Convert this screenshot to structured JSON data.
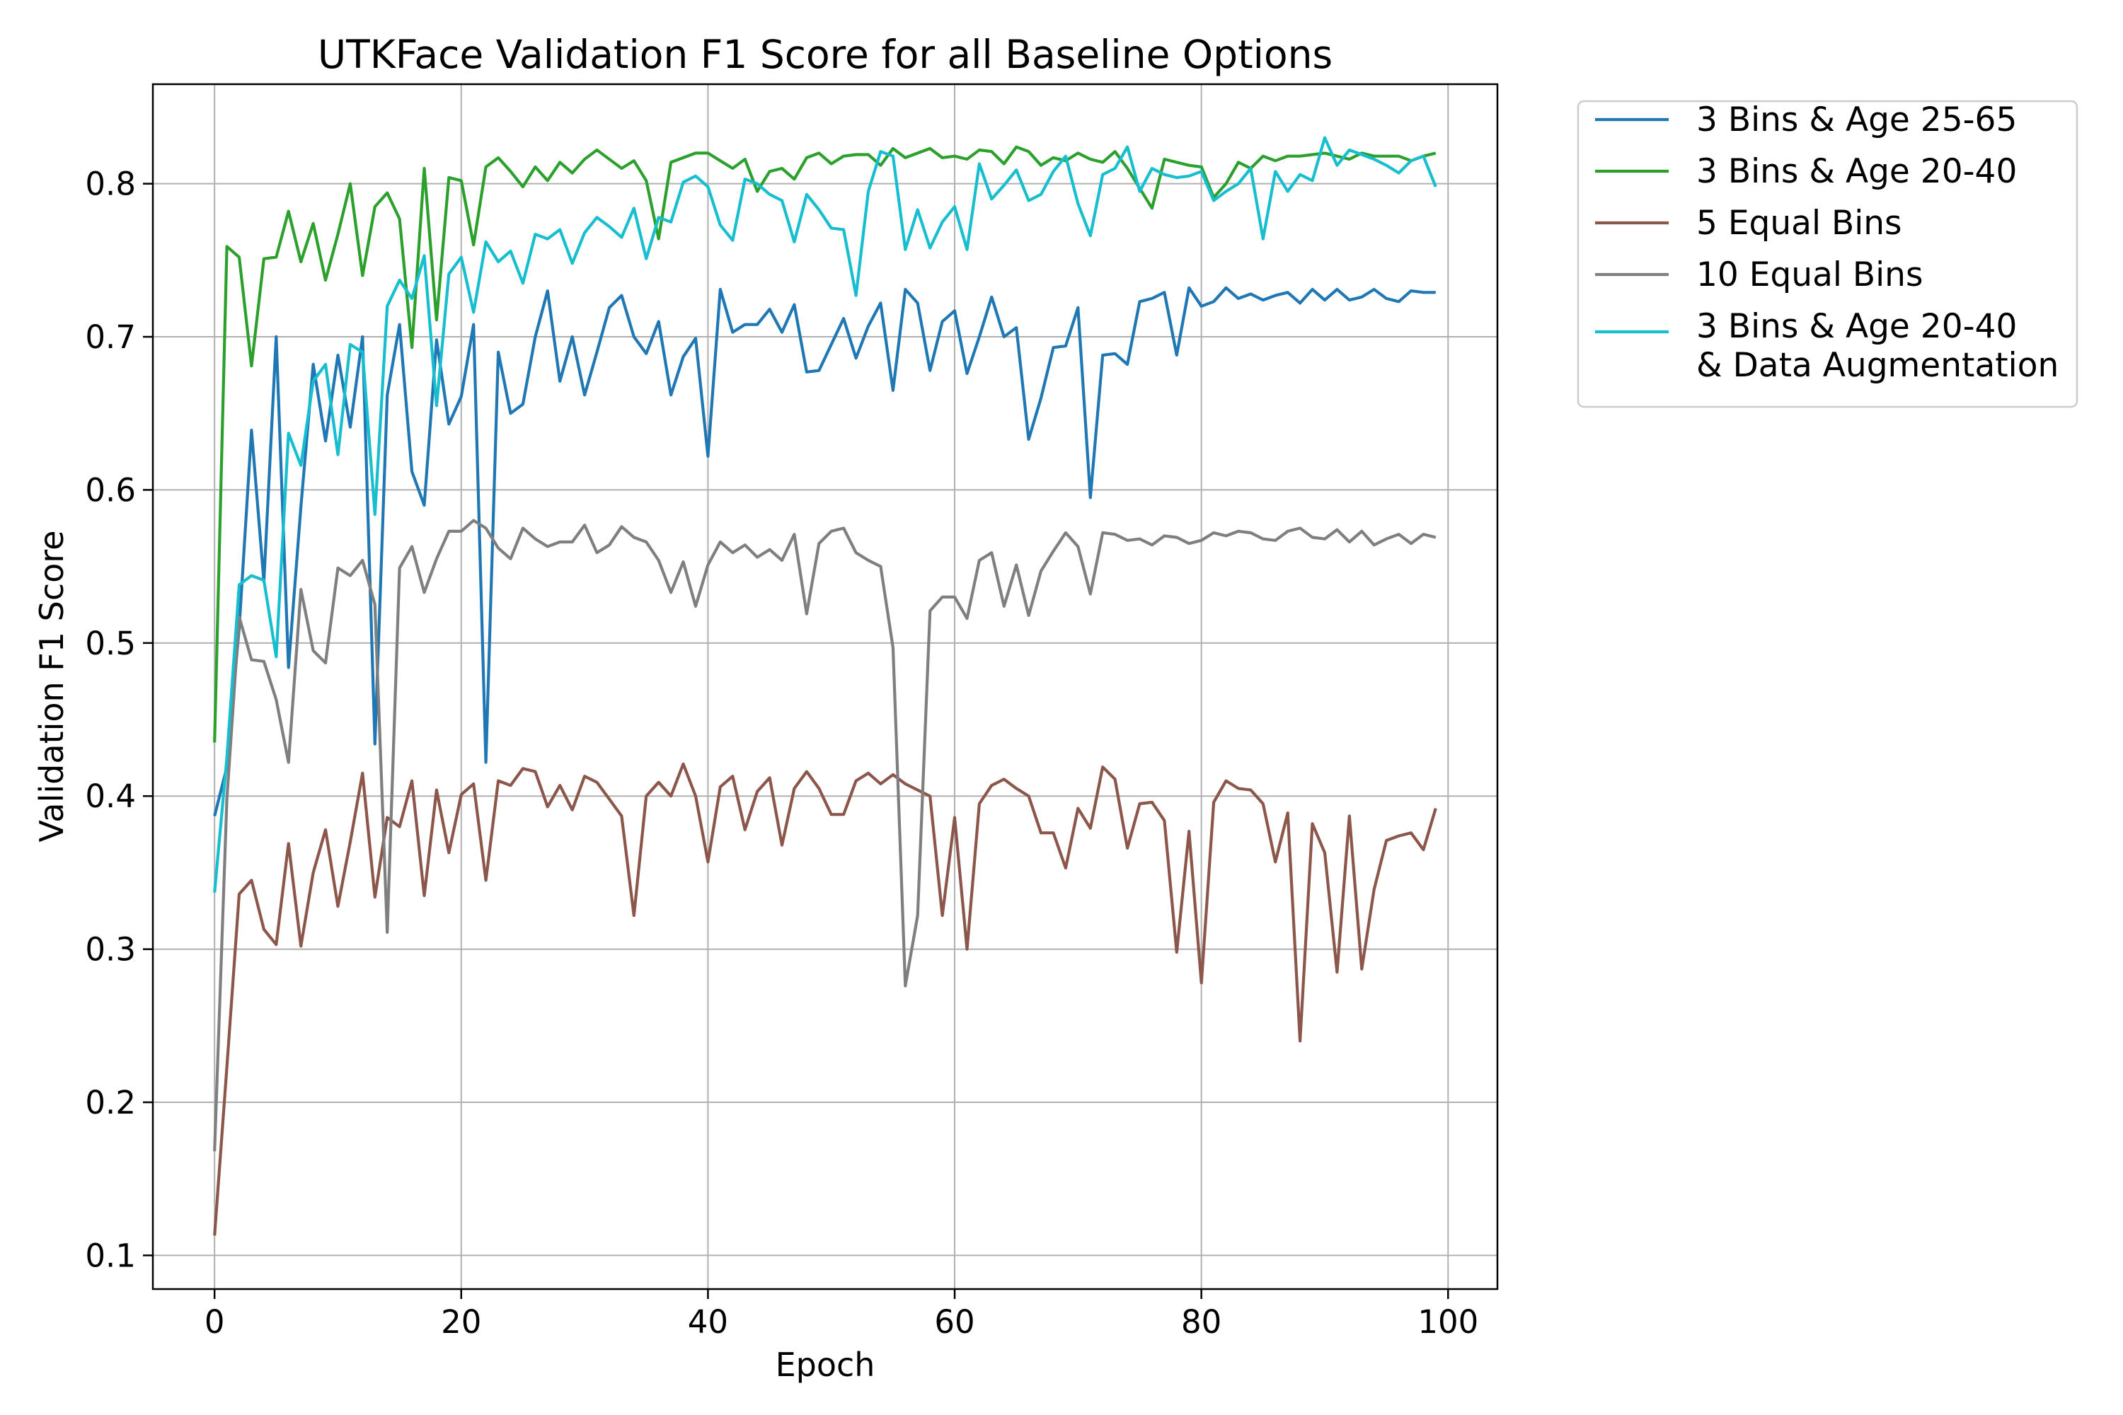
{
  "chart_data": {
    "type": "line",
    "title": "UTKFace Validation F1 Score for all Baseline Options",
    "xlabel": "Epoch",
    "ylabel": "Validation F1 Score",
    "xlim": [
      -5,
      104
    ],
    "ylim": [
      0.078,
      0.865
    ],
    "xticks": [
      0,
      20,
      40,
      60,
      80,
      100
    ],
    "yticks": [
      0.1,
      0.2,
      0.3,
      0.4,
      0.5,
      0.6,
      0.7,
      0.8
    ],
    "grid": true,
    "legend_position": "outside-right-top",
    "series": [
      {
        "name": "3 Bins & Age 25-65",
        "color": "#1f77b4",
        "values": [
          0.387,
          0.419,
          0.51,
          0.639,
          0.54,
          0.7,
          0.484,
          0.589,
          0.682,
          0.632,
          0.688,
          0.641,
          0.7,
          0.434,
          0.662,
          0.708,
          0.612,
          0.59,
          0.698,
          0.643,
          0.661,
          0.708,
          0.422,
          0.69,
          0.65,
          0.656,
          0.7,
          0.73,
          0.671,
          0.7,
          0.662,
          0.69,
          0.719,
          0.727,
          0.7,
          0.689,
          0.71,
          0.662,
          0.687,
          0.699,
          0.622,
          0.731,
          0.703,
          0.708,
          0.708,
          0.718,
          0.703,
          0.721,
          0.677,
          0.678,
          0.695,
          0.712,
          0.686,
          0.707,
          0.722,
          0.665,
          0.731,
          0.722,
          0.678,
          0.71,
          0.717,
          0.676,
          0.7,
          0.726,
          0.7,
          0.706,
          0.633,
          0.66,
          0.693,
          0.694,
          0.719,
          0.595,
          0.688,
          0.689,
          0.682,
          0.723,
          0.725,
          0.729,
          0.688,
          0.732,
          0.72,
          0.723,
          0.732,
          0.725,
          0.728,
          0.724,
          0.727,
          0.729,
          0.722,
          0.731,
          0.724,
          0.731,
          0.724,
          0.726,
          0.731,
          0.725,
          0.723,
          0.73,
          0.729,
          0.729
        ]
      },
      {
        "name": "3 Bins & Age 20-40",
        "color": "#2ca02c",
        "values": [
          0.435,
          0.759,
          0.752,
          0.681,
          0.751,
          0.752,
          0.782,
          0.749,
          0.774,
          0.737,
          0.767,
          0.8,
          0.74,
          0.785,
          0.794,
          0.777,
          0.693,
          0.81,
          0.711,
          0.804,
          0.802,
          0.76,
          0.811,
          0.817,
          0.808,
          0.798,
          0.811,
          0.802,
          0.814,
          0.807,
          0.816,
          0.822,
          0.816,
          0.81,
          0.815,
          0.802,
          0.764,
          0.814,
          0.817,
          0.82,
          0.82,
          0.815,
          0.81,
          0.816,
          0.795,
          0.808,
          0.81,
          0.803,
          0.817,
          0.82,
          0.813,
          0.818,
          0.819,
          0.819,
          0.812,
          0.823,
          0.817,
          0.82,
          0.823,
          0.817,
          0.818,
          0.816,
          0.822,
          0.821,
          0.813,
          0.824,
          0.821,
          0.812,
          0.817,
          0.815,
          0.82,
          0.816,
          0.814,
          0.821,
          0.81,
          0.797,
          0.784,
          0.816,
          0.814,
          0.812,
          0.811,
          0.791,
          0.8,
          0.814,
          0.81,
          0.818,
          0.815,
          0.818,
          0.818,
          0.819,
          0.82,
          0.818,
          0.816,
          0.82,
          0.818,
          0.818,
          0.818,
          0.815,
          0.818,
          0.82
        ]
      },
      {
        "name": "5 Equal Bins",
        "color": "#8c564b",
        "values": [
          0.113,
          0.223,
          0.336,
          0.345,
          0.313,
          0.303,
          0.369,
          0.302,
          0.35,
          0.378,
          0.328,
          0.37,
          0.415,
          0.334,
          0.386,
          0.38,
          0.41,
          0.335,
          0.404,
          0.363,
          0.401,
          0.408,
          0.345,
          0.41,
          0.407,
          0.418,
          0.416,
          0.393,
          0.407,
          0.391,
          0.413,
          0.409,
          0.398,
          0.387,
          0.322,
          0.4,
          0.409,
          0.4,
          0.421,
          0.4,
          0.357,
          0.406,
          0.413,
          0.378,
          0.403,
          0.412,
          0.368,
          0.405,
          0.416,
          0.405,
          0.388,
          0.388,
          0.41,
          0.415,
          0.408,
          0.414,
          0.408,
          0.404,
          0.4,
          0.322,
          0.386,
          0.3,
          0.395,
          0.407,
          0.411,
          0.405,
          0.4,
          0.376,
          0.376,
          0.353,
          0.392,
          0.379,
          0.419,
          0.411,
          0.366,
          0.395,
          0.396,
          0.384,
          0.298,
          0.377,
          0.278,
          0.396,
          0.41,
          0.405,
          0.404,
          0.395,
          0.357,
          0.389,
          0.24,
          0.382,
          0.363,
          0.285,
          0.387,
          0.287,
          0.339,
          0.371,
          0.374,
          0.376,
          0.365,
          0.392
        ]
      },
      {
        "name": "10 Equal Bins",
        "color": "#7f7f7f",
        "values": [
          0.168,
          0.398,
          0.517,
          0.489,
          0.488,
          0.463,
          0.422,
          0.535,
          0.495,
          0.487,
          0.549,
          0.544,
          0.554,
          0.525,
          0.311,
          0.549,
          0.563,
          0.533,
          0.555,
          0.573,
          0.573,
          0.58,
          0.575,
          0.562,
          0.555,
          0.575,
          0.568,
          0.563,
          0.566,
          0.566,
          0.577,
          0.559,
          0.564,
          0.576,
          0.569,
          0.566,
          0.554,
          0.533,
          0.553,
          0.524,
          0.551,
          0.566,
          0.559,
          0.564,
          0.556,
          0.561,
          0.554,
          0.571,
          0.519,
          0.565,
          0.573,
          0.575,
          0.559,
          0.554,
          0.55,
          0.497,
          0.276,
          0.322,
          0.521,
          0.53,
          0.53,
          0.516,
          0.554,
          0.559,
          0.524,
          0.551,
          0.518,
          0.547,
          0.56,
          0.572,
          0.563,
          0.532,
          0.572,
          0.571,
          0.567,
          0.568,
          0.564,
          0.57,
          0.569,
          0.565,
          0.567,
          0.572,
          0.57,
          0.573,
          0.572,
          0.568,
          0.567,
          0.573,
          0.575,
          0.569,
          0.568,
          0.574,
          0.566,
          0.573,
          0.564,
          0.568,
          0.571,
          0.565,
          0.571,
          0.569
        ]
      },
      {
        "name": "3 Bins & Age 20-40\n& Data Augmentation",
        "color": "#17becf",
        "values": [
          0.337,
          0.425,
          0.538,
          0.544,
          0.541,
          0.491,
          0.637,
          0.616,
          0.671,
          0.682,
          0.623,
          0.695,
          0.69,
          0.584,
          0.72,
          0.737,
          0.725,
          0.753,
          0.655,
          0.741,
          0.752,
          0.716,
          0.762,
          0.749,
          0.756,
          0.735,
          0.767,
          0.764,
          0.77,
          0.748,
          0.768,
          0.778,
          0.772,
          0.765,
          0.784,
          0.751,
          0.778,
          0.775,
          0.801,
          0.805,
          0.798,
          0.773,
          0.763,
          0.803,
          0.8,
          0.793,
          0.789,
          0.762,
          0.793,
          0.783,
          0.771,
          0.77,
          0.727,
          0.795,
          0.821,
          0.818,
          0.757,
          0.783,
          0.758,
          0.775,
          0.785,
          0.757,
          0.813,
          0.79,
          0.799,
          0.809,
          0.789,
          0.793,
          0.808,
          0.818,
          0.787,
          0.766,
          0.806,
          0.81,
          0.824,
          0.795,
          0.81,
          0.806,
          0.804,
          0.805,
          0.808,
          0.789,
          0.795,
          0.8,
          0.81,
          0.764,
          0.808,
          0.795,
          0.806,
          0.802,
          0.83,
          0.812,
          0.822,
          0.819,
          0.816,
          0.812,
          0.807,
          0.815,
          0.818,
          0.798
        ]
      }
    ]
  }
}
